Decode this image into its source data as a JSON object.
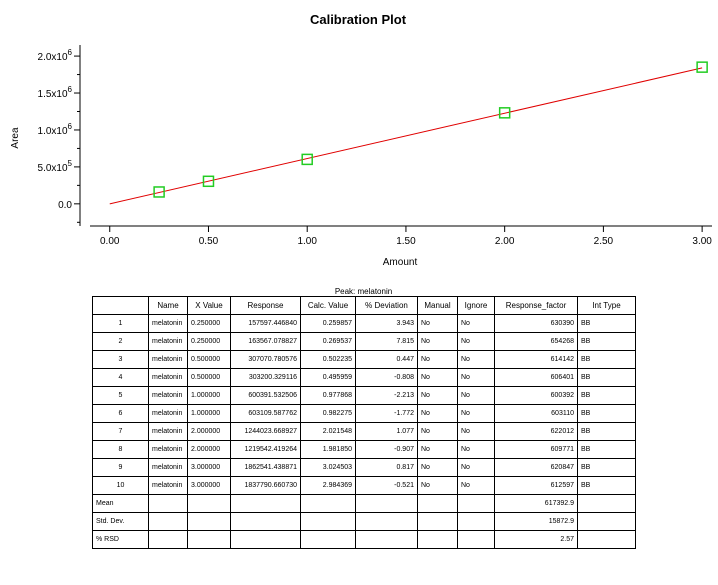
{
  "chart_data": {
    "type": "scatter",
    "title": "Calibration Plot",
    "xlabel": "Amount",
    "ylabel": "Area",
    "xlim": [
      -0.1,
      3.05
    ],
    "ylim": [
      -300000,
      2150000
    ],
    "xticks": [
      0.0,
      0.5,
      1.0,
      1.5,
      2.0,
      2.5,
      3.0
    ],
    "xtick_labels": [
      "0.00",
      "0.50",
      "1.00",
      "1.50",
      "2.00",
      "2.50",
      "3.00"
    ],
    "yticks": [
      0,
      500000,
      1000000,
      1500000,
      2000000
    ],
    "ytick_labels": [
      {
        "base": "0.0",
        "exp": ""
      },
      {
        "base": "5.0x10",
        "exp": "5"
      },
      {
        "base": "1.0x10",
        "exp": "6"
      },
      {
        "base": "1.5x10",
        "exp": "6"
      },
      {
        "base": "2.0x10",
        "exp": "6"
      }
    ],
    "grid": false,
    "series": [
      {
        "type": "scatter",
        "marker": "square",
        "color": "#22cc22",
        "x": [
          0.25,
          0.5,
          1.0,
          2.0,
          3.0
        ],
        "y": [
          160582,
          305136,
          601751,
          1231783,
          1850166
        ]
      },
      {
        "type": "line",
        "color": "#e00000",
        "x": [
          0.0,
          3.0
        ],
        "y": [
          0,
          1840000
        ]
      }
    ]
  },
  "table": {
    "title": "Peak: melatonin",
    "headers": [
      "",
      "Name",
      "X Value",
      "Response",
      "Calc. Value",
      "% Deviation",
      "Manual",
      "Ignore",
      "Response_factor",
      "Int Type"
    ],
    "rows": [
      [
        "1",
        "melatonin",
        "0.250000",
        "157597.446840",
        "0.259857",
        "3.943",
        "No",
        "No",
        "630390",
        "BB"
      ],
      [
        "2",
        "melatonin",
        "0.250000",
        "163567.078827",
        "0.269537",
        "7.815",
        "No",
        "No",
        "654268",
        "BB"
      ],
      [
        "3",
        "melatonin",
        "0.500000",
        "307070.780576",
        "0.502235",
        "0.447",
        "No",
        "No",
        "614142",
        "BB"
      ],
      [
        "4",
        "melatonin",
        "0.500000",
        "303200.329116",
        "0.495959",
        "-0.808",
        "No",
        "No",
        "606401",
        "BB"
      ],
      [
        "5",
        "melatonin",
        "1.000000",
        "600391.532506",
        "0.977868",
        "-2.213",
        "No",
        "No",
        "600392",
        "BB"
      ],
      [
        "6",
        "melatonin",
        "1.000000",
        "603109.587762",
        "0.982275",
        "-1.772",
        "No",
        "No",
        "603110",
        "BB"
      ],
      [
        "7",
        "melatonin",
        "2.000000",
        "1244023.668927",
        "2.021548",
        "1.077",
        "No",
        "No",
        "622012",
        "BB"
      ],
      [
        "8",
        "melatonin",
        "2.000000",
        "1219542.419264",
        "1.981850",
        "-0.907",
        "No",
        "No",
        "609771",
        "BB"
      ],
      [
        "9",
        "melatonin",
        "3.000000",
        "1862541.438871",
        "3.024503",
        "0.817",
        "No",
        "No",
        "620847",
        "BB"
      ],
      [
        "10",
        "melatonin",
        "3.000000",
        "1837790.660730",
        "2.984369",
        "-0.521",
        "No",
        "No",
        "612597",
        "BB"
      ],
      [
        "Mean",
        "",
        "",
        "",
        "",
        "",
        "",
        "",
        "617392.9",
        ""
      ],
      [
        "Std. Dev.",
        "",
        "",
        "",
        "",
        "",
        "",
        "",
        "15872.9",
        ""
      ],
      [
        "% RSD",
        "",
        "",
        "",
        "",
        "",
        "",
        "",
        "2.57",
        ""
      ]
    ]
  }
}
